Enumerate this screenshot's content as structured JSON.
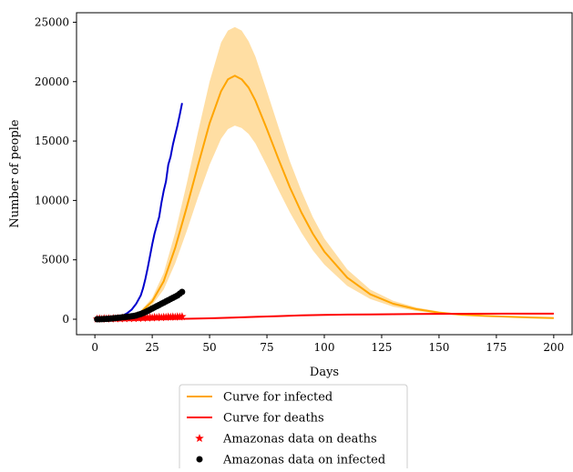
{
  "chart_data": {
    "type": "line",
    "xlabel": "Days",
    "ylabel": "Number of people",
    "xlim": [
      -8,
      208
    ],
    "ylim": [
      -1300,
      25800
    ],
    "grid": false,
    "legend_placement": "below",
    "x_ticks": [
      0,
      25,
      50,
      75,
      100,
      125,
      150,
      175,
      200
    ],
    "y_ticks": [
      0,
      5000,
      10000,
      15000,
      20000,
      25000
    ],
    "series": [
      {
        "name": "Curve for infected",
        "kind": "line",
        "color": "#ffa500",
        "x": [
          0,
          10,
          20,
          25,
          30,
          35,
          40,
          45,
          50,
          55,
          58,
          61,
          64,
          67,
          70,
          75,
          80,
          85,
          90,
          95,
          100,
          110,
          120,
          130,
          140,
          150,
          160,
          170,
          180,
          190,
          200
        ],
        "y": [
          0,
          100,
          600,
          1500,
          3200,
          6000,
          9400,
          13000,
          16500,
          19200,
          20200,
          20500,
          20200,
          19500,
          18400,
          16000,
          13500,
          11100,
          9000,
          7200,
          5700,
          3500,
          2100,
          1300,
          850,
          550,
          380,
          280,
          210,
          150,
          100
        ],
        "band_upper": [
          0,
          120,
          720,
          1800,
          3900,
          7300,
          11400,
          15800,
          20000,
          23300,
          24300,
          24600,
          24300,
          23400,
          22100,
          19200,
          16200,
          13300,
          10800,
          8600,
          6800,
          4200,
          2500,
          1550,
          1000,
          650,
          450,
          330,
          250,
          180,
          120
        ],
        "band_lower": [
          0,
          80,
          480,
          1200,
          2500,
          4700,
          7400,
          10300,
          13000,
          15200,
          16000,
          16300,
          16100,
          15600,
          14800,
          12900,
          10900,
          9000,
          7300,
          5800,
          4600,
          2800,
          1700,
          1050,
          700,
          450,
          310,
          230,
          170,
          120,
          80
        ],
        "band_color": "#ffdea3"
      },
      {
        "name": "Curve for deaths",
        "kind": "line",
        "color": "#ff0000",
        "x": [
          0,
          20,
          40,
          50,
          60,
          70,
          80,
          90,
          100,
          110,
          120,
          140,
          160,
          180,
          200
        ],
        "y": [
          0,
          10,
          40,
          80,
          140,
          200,
          260,
          320,
          360,
          390,
          410,
          440,
          460,
          470,
          470
        ]
      },
      {
        "name": "Amazonas data on deaths",
        "kind": "scatter",
        "marker": "star",
        "color": "#ff0000",
        "x": [
          1,
          2,
          3,
          4,
          5,
          6,
          7,
          8,
          9,
          10,
          11,
          12,
          13,
          14,
          15,
          16,
          17,
          18,
          19,
          20,
          21,
          22,
          23,
          24,
          25,
          26,
          27,
          28,
          29,
          30,
          31,
          32,
          33,
          34,
          35,
          36,
          37,
          38
        ],
        "y": [
          20,
          50,
          10,
          60,
          30,
          60,
          20,
          70,
          40,
          80,
          40,
          90,
          50,
          100,
          60,
          110,
          60,
          120,
          80,
          130,
          90,
          140,
          100,
          150,
          120,
          160,
          130,
          170,
          140,
          180,
          160,
          190,
          170,
          200,
          180,
          210,
          190,
          220
        ]
      },
      {
        "name": "Amazonas data on infected",
        "kind": "scatter",
        "marker": "circle",
        "color": "#000000",
        "x": [
          1,
          2,
          3,
          4,
          5,
          6,
          7,
          8,
          9,
          10,
          11,
          12,
          13,
          14,
          15,
          16,
          17,
          18,
          19,
          20,
          21,
          22,
          23,
          24,
          25,
          26,
          27,
          28,
          29,
          30,
          31,
          32,
          33,
          34,
          35,
          36,
          37,
          38
        ],
        "y": [
          0,
          5,
          10,
          20,
          30,
          40,
          60,
          80,
          100,
          120,
          140,
          160,
          180,
          200,
          220,
          250,
          280,
          320,
          380,
          440,
          520,
          600,
          700,
          800,
          900,
          1000,
          1100,
          1200,
          1300,
          1400,
          1500,
          1600,
          1700,
          1800,
          1900,
          2000,
          2150,
          2300
        ]
      },
      {
        "name": "",
        "kind": "line",
        "color": "#0000cd",
        "x": [
          0,
          5,
          8,
          10,
          12,
          14,
          16,
          18,
          20,
          21,
          22,
          23,
          24,
          25,
          26,
          27,
          28,
          29,
          30,
          31,
          32,
          33,
          34,
          35,
          36,
          37,
          38
        ],
        "y": [
          0,
          20,
          60,
          150,
          300,
          500,
          800,
          1300,
          2000,
          2600,
          3400,
          4300,
          5300,
          6300,
          7200,
          7900,
          8600,
          9800,
          10800,
          11600,
          13000,
          13700,
          14700,
          15500,
          16300,
          17200,
          18200
        ]
      }
    ]
  }
}
